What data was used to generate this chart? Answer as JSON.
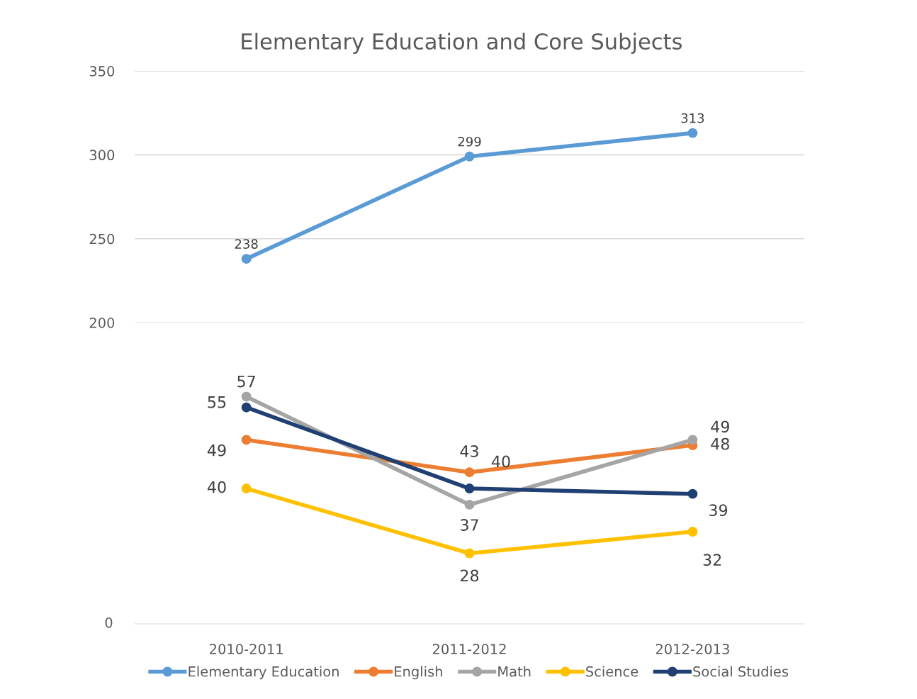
{
  "chart_data": [
    {
      "type": "line",
      "title": "Elementary Education and Core Subjects",
      "categories": [
        null,
        null,
        null
      ],
      "series": [
        {
          "name": "Elementary Education",
          "color": "#5b9bd5",
          "values": [
            238,
            299,
            313
          ]
        }
      ],
      "ylim": [
        200,
        350
      ],
      "yticks": [
        200,
        250,
        300,
        350
      ],
      "grid": "y",
      "data_labels": true,
      "marker": "circle"
    },
    {
      "type": "line",
      "categories": [
        "2010-2011",
        "2011-2012",
        "2012-2013"
      ],
      "series": [
        {
          "name": "English",
          "color": "#ed7d31",
          "values": [
            49,
            43,
            48
          ]
        },
        {
          "name": "Math",
          "color": "#a5a5a5",
          "values": [
            57,
            37,
            49
          ]
        },
        {
          "name": "Science",
          "color": "#ffc000",
          "values": [
            40,
            28,
            32
          ]
        },
        {
          "name": "Social Studies",
          "color": "#203f73",
          "values": [
            55,
            40,
            39
          ]
        }
      ],
      "data_labels": true,
      "annotations": [
        "0"
      ],
      "marker": "circle",
      "legend": "bottom"
    }
  ]
}
